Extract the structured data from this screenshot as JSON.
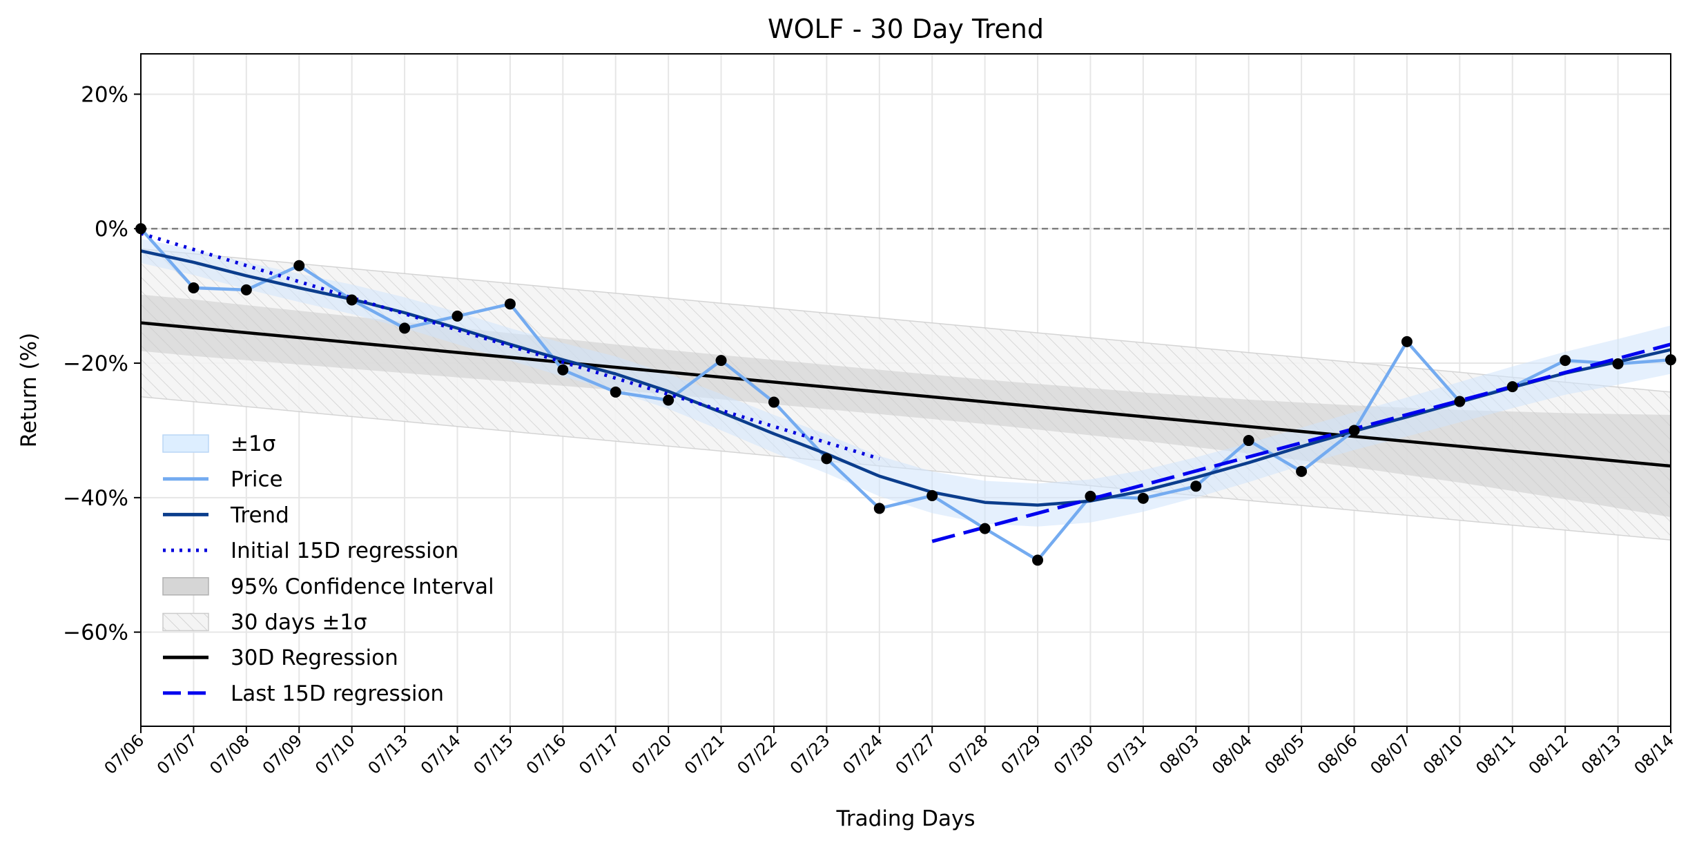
{
  "chart_data": {
    "type": "line",
    "title": "WOLF - 30 Day Trend",
    "xlabel": "Trading Days",
    "ylabel": "Return (%)",
    "ylim": [
      -74,
      26
    ],
    "yticks": [
      20,
      0,
      -20,
      -40,
      -60
    ],
    "ytick_labels": [
      "20%",
      "0%",
      "−20%",
      "−40%",
      "−60%"
    ],
    "grid": true,
    "legend_position": "lower-left",
    "categories": [
      "07/06",
      "07/07",
      "07/08",
      "07/09",
      "07/10",
      "07/13",
      "07/14",
      "07/15",
      "07/16",
      "07/17",
      "07/20",
      "07/21",
      "07/22",
      "07/23",
      "07/24",
      "07/27",
      "07/28",
      "07/29",
      "07/30",
      "07/31",
      "08/03",
      "08/04",
      "08/05",
      "08/06",
      "08/07",
      "08/10",
      "08/11",
      "08/12",
      "08/13",
      "08/14"
    ],
    "series": [
      {
        "name": "Price",
        "color": "#74abf0",
        "values": [
          0.0,
          -8.8,
          -9.1,
          -5.5,
          -10.6,
          -14.8,
          -13.0,
          -11.2,
          -21.0,
          -24.3,
          -25.5,
          -19.6,
          -25.8,
          -34.2,
          -41.6,
          -39.7,
          -44.6,
          -49.3,
          -39.8,
          -40.1,
          -38.3,
          -31.5,
          -36.1,
          -30.0,
          -16.8,
          -25.7,
          -23.5,
          -19.6,
          -20.1,
          -19.5
        ],
        "marker_color": "#000000"
      },
      {
        "name": "Trend",
        "color": "#0b3d8c",
        "values": [
          -3.3,
          -5.0,
          -7.0,
          -8.8,
          -10.5,
          -12.5,
          -14.8,
          -17.2,
          -19.5,
          -21.6,
          -24.2,
          -27.3,
          -30.5,
          -33.5,
          -36.8,
          -39.2,
          -40.7,
          -41.1,
          -40.5,
          -39.0,
          -37.0,
          -34.8,
          -32.4,
          -30.1,
          -28.0,
          -25.8,
          -23.6,
          -21.5,
          -19.8,
          -18.0
        ],
        "band_sigma": [
          1.8,
          1.9,
          2.0,
          2.1,
          2.2,
          2.3,
          2.4,
          2.4,
          2.5,
          2.6,
          2.6,
          2.7,
          2.8,
          2.9,
          3.0,
          3.1,
          3.2,
          3.2,
          3.2,
          3.1,
          3.0,
          2.9,
          2.8,
          2.8,
          2.9,
          3.0,
          3.1,
          3.2,
          3.4,
          3.6
        ]
      },
      {
        "name": "Initial 15D regression",
        "color": "#0000dd",
        "style": "dotted",
        "x_range": [
          0,
          14
        ],
        "y_range": [
          -0.7,
          -34.2
        ]
      },
      {
        "name": "Last 15D regression",
        "color": "#0000ee",
        "style": "dashed",
        "x_range": [
          15,
          29
        ],
        "y_range": [
          -46.5,
          -17.2
        ]
      },
      {
        "name": "30D Regression",
        "color": "#000000",
        "style": "solid",
        "x_range": [
          0,
          29
        ],
        "y_range": [
          -14.0,
          -35.3
        ],
        "ci95_half_width": [
          4.2,
          4.2,
          4.1,
          4.0,
          3.9,
          3.8,
          3.7,
          3.6,
          3.5,
          3.4,
          3.3,
          3.3,
          3.3,
          3.3,
          3.3,
          3.3,
          3.3,
          3.4,
          3.5,
          3.6,
          3.8,
          4.0,
          4.3,
          4.6,
          5.0,
          5.4,
          5.9,
          6.4,
          7.0,
          7.6
        ],
        "sigma_half_width": 11.0
      }
    ],
    "reference_line": {
      "y": 0,
      "color": "#808080",
      "style": "dashed"
    },
    "legend": [
      {
        "label": "±1σ",
        "kind": "patch",
        "fill": "#ddeeff",
        "stroke": "#b9d6f6"
      },
      {
        "label": "Price",
        "kind": "line",
        "color": "#74abf0",
        "dash": ""
      },
      {
        "label": "Trend",
        "kind": "line",
        "color": "#0b3d8c",
        "dash": ""
      },
      {
        "label": "Initial 15D regression",
        "kind": "line",
        "color": "#0000dd",
        "dash": "dotted"
      },
      {
        "label": "95% Confidence Interval",
        "kind": "patch",
        "fill": "#d6d6d6",
        "stroke": "#b0b0b0"
      },
      {
        "label": "30 days ±1σ",
        "kind": "hatch",
        "fill": "#f4f4f4",
        "stroke": "#cccccc"
      },
      {
        "label": "30D Regression",
        "kind": "line",
        "color": "#000000",
        "dash": ""
      },
      {
        "label": "Last 15D regression",
        "kind": "line",
        "color": "#0000ee",
        "dash": "dashed"
      }
    ]
  }
}
